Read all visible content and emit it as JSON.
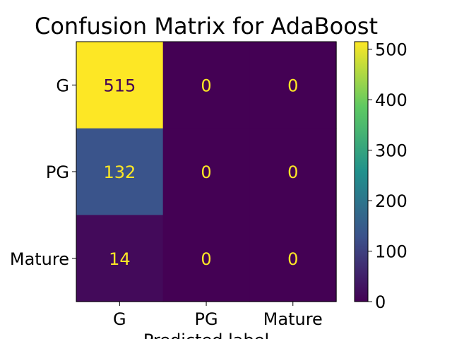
{
  "chart_data": {
    "type": "heatmap",
    "title": "Confusion Matrix for AdaBoost",
    "xlabel": "Predicted label",
    "ylabel": "",
    "row_labels": [
      "G",
      "PG",
      "Mature"
    ],
    "col_labels": [
      "G",
      "PG",
      "Mature"
    ],
    "values": [
      [
        515,
        0,
        0
      ],
      [
        132,
        0,
        0
      ],
      [
        14,
        0,
        0
      ]
    ],
    "colormap": "viridis",
    "colorbar": {
      "min": 0,
      "max": 515,
      "ticks": [
        0,
        100,
        200,
        300,
        400,
        500
      ]
    },
    "grid": false
  }
}
